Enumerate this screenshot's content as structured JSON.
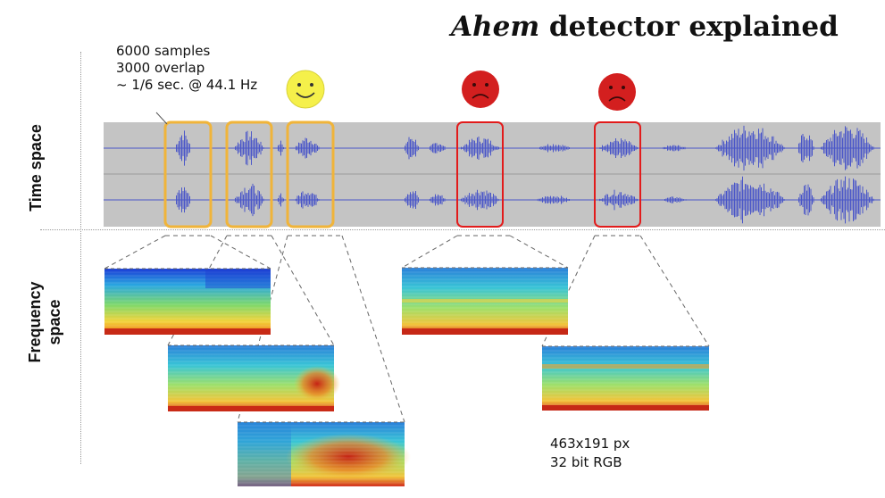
{
  "title": {
    "emphasis": "Ahem",
    "rest": " detector explained"
  },
  "params": {
    "line1": "6000 samples",
    "line2": "3000 overlap",
    "line3": "~ 1/6 sec. @ 44.1 Hz"
  },
  "axis_labels": {
    "time": "Time space",
    "frequency_line1": "Frequency",
    "frequency_line2": "space"
  },
  "spectrogram_info": {
    "line1": "463x191 px",
    "line2": "32 bit RGB"
  },
  "colors": {
    "waveform": "#4a56c8",
    "waveform_bg": "#c4c4c4",
    "good_box": "#f0b43a",
    "bad_box": "#e21b1b",
    "happy_face": "#f5f04a",
    "sad_face": "#d31f1f"
  },
  "icons": [
    "smiley-icon",
    "sad-face-icon",
    "sad-face-icon"
  ]
}
